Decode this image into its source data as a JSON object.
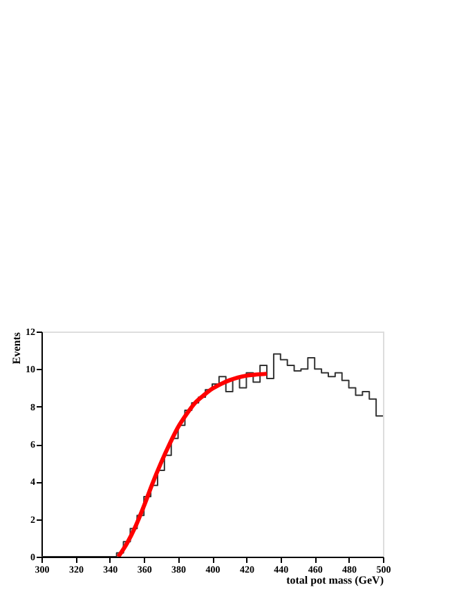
{
  "chart_data": {
    "type": "histogram",
    "xlabel": "total pot mass (GeV)",
    "ylabel": "Events",
    "xlim": [
      300,
      500
    ],
    "xticks": [
      300,
      320,
      340,
      360,
      380,
      400,
      420,
      440,
      460,
      480,
      500
    ],
    "ylim": [
      0,
      12
    ],
    "yticks": [
      0,
      2,
      4,
      6,
      8,
      10,
      12
    ],
    "grid": false,
    "legend": false,
    "series": [
      {
        "type": "histogram",
        "color": "#333333",
        "bins": [
          300,
          304,
          308,
          312,
          316,
          320,
          324,
          328,
          332,
          336,
          340,
          344,
          348,
          352,
          356,
          360,
          364,
          368,
          372,
          376,
          380,
          384,
          388,
          392,
          396,
          400,
          404,
          408,
          412,
          416,
          420,
          424,
          428,
          432,
          436,
          440,
          444,
          448,
          452,
          456,
          460,
          464,
          468,
          472,
          476,
          480,
          484,
          488,
          492,
          496,
          500
        ],
        "values": [
          0,
          0,
          0,
          0,
          0,
          0,
          0,
          0,
          0,
          0,
          0,
          0.2,
          0.8,
          1.5,
          2.2,
          3.2,
          3.8,
          4.6,
          5.4,
          6.3,
          7.0,
          7.8,
          8.2,
          8.5,
          8.9,
          9.2,
          9.6,
          8.8,
          9.5,
          9.0,
          9.8,
          9.3,
          10.2,
          9.5,
          10.8,
          10.5,
          10.2,
          9.9,
          10.0,
          10.6,
          10.0,
          9.8,
          9.6,
          9.8,
          9.4,
          9.0,
          8.6,
          8.8,
          8.4,
          7.5
        ]
      },
      {
        "type": "line",
        "color": "#ff0000",
        "x": [
          345,
          350,
          355,
          360,
          365,
          370,
          375,
          380,
          385,
          390,
          395,
          400,
          405,
          410,
          415,
          420,
          425,
          432
        ],
        "values": [
          0,
          0.7,
          1.6,
          2.7,
          3.9,
          5.0,
          6.0,
          6.9,
          7.6,
          8.2,
          8.6,
          8.95,
          9.2,
          9.4,
          9.55,
          9.65,
          9.7,
          9.75
        ]
      }
    ]
  }
}
